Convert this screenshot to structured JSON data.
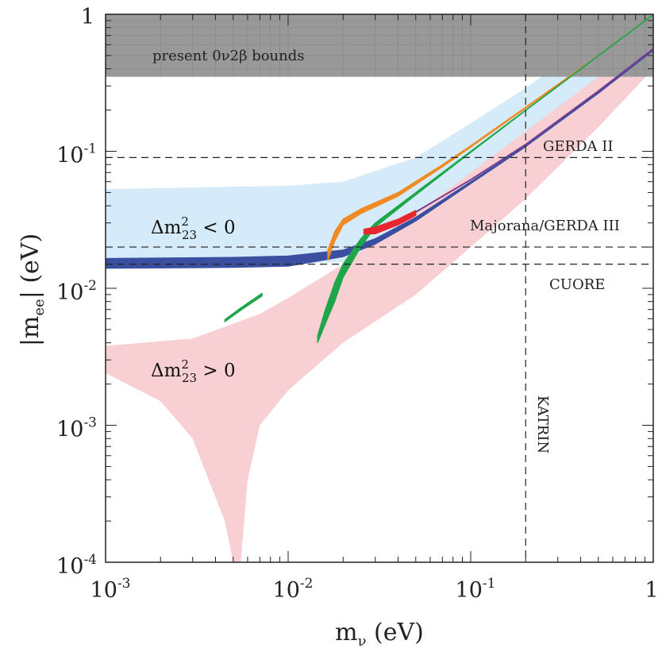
{
  "chart_data": {
    "type": "line",
    "title": "",
    "xlabel": "m_ν (eV)",
    "ylabel": "|m_ee| (eV)",
    "xscale": "log",
    "yscale": "log",
    "xlim": [
      0.001,
      1
    ],
    "ylim": [
      0.0001,
      1
    ],
    "x_ticks": [
      {
        "value": 0.001,
        "base": "10",
        "exp": "-3"
      },
      {
        "value": 0.01,
        "base": "10",
        "exp": "-2"
      },
      {
        "value": 0.1,
        "base": "10",
        "exp": "-1"
      },
      {
        "value": 1,
        "base": "1",
        "exp": ""
      }
    ],
    "y_ticks": [
      {
        "value": 0.0001,
        "base": "10",
        "exp": "-4"
      },
      {
        "value": 0.001,
        "base": "10",
        "exp": "-3"
      },
      {
        "value": 0.01,
        "base": "10",
        "exp": "-2"
      },
      {
        "value": 0.1,
        "base": "10",
        "exp": "-1"
      },
      {
        "value": 1,
        "base": "1",
        "exp": ""
      }
    ],
    "excluded_region": {
      "label": "present 0ν2β bounds",
      "y_min": 0.35,
      "y_max": 1,
      "color": "#999999"
    },
    "bands": [
      {
        "name": "inverted hierarchy band",
        "color": "#d6ebf9",
        "upper": [
          [
            0.001,
            0.053
          ],
          [
            0.01,
            0.056
          ],
          [
            0.02,
            0.06
          ],
          [
            0.05,
            0.09
          ],
          [
            0.1,
            0.16
          ],
          [
            0.2,
            0.29
          ],
          [
            0.4,
            0.55
          ],
          [
            1,
            1
          ]
        ],
        "lower": [
          [
            0.001,
            0.015
          ],
          [
            0.01,
            0.0152
          ],
          [
            0.02,
            0.0155
          ],
          [
            0.05,
            0.025
          ],
          [
            0.1,
            0.045
          ],
          [
            0.2,
            0.083
          ],
          [
            0.5,
            0.2
          ],
          [
            1,
            0.4
          ]
        ]
      },
      {
        "name": "normal hierarchy band",
        "color": "#f8d0d3",
        "upper": [
          [
            0.001,
            0.0038
          ],
          [
            0.003,
            0.0043
          ],
          [
            0.007,
            0.0065
          ],
          [
            0.01,
            0.0085
          ],
          [
            0.02,
            0.015
          ],
          [
            0.05,
            0.035
          ],
          [
            0.1,
            0.07
          ],
          [
            0.2,
            0.14
          ],
          [
            0.5,
            0.35
          ],
          [
            1,
            0.7
          ]
        ],
        "lower": [
          [
            0.001,
            0.0024
          ],
          [
            0.002,
            0.0015
          ],
          [
            0.003,
            0.0008
          ],
          [
            0.0045,
            0.0002
          ],
          [
            0.005,
            0.0001
          ],
          [
            0.0055,
            0.0001
          ],
          [
            0.006,
            0.0004
          ],
          [
            0.007,
            0.001
          ],
          [
            0.01,
            0.0018
          ],
          [
            0.02,
            0.004
          ],
          [
            0.05,
            0.009
          ],
          [
            0.1,
            0.02
          ],
          [
            0.2,
            0.045
          ],
          [
            0.5,
            0.15
          ],
          [
            1,
            0.4
          ]
        ]
      }
    ],
    "reference_lines": [
      {
        "orientation": "horizontal",
        "value": 0.09,
        "label": "GERDA II"
      },
      {
        "orientation": "horizontal",
        "value": 0.02,
        "label": "Majorana/GERDA III"
      },
      {
        "orientation": "horizontal",
        "value": 0.015,
        "label": "CUORE"
      },
      {
        "orientation": "vertical",
        "value": 0.2,
        "label": "KATRIN"
      }
    ],
    "series": [
      {
        "name": "blue band",
        "color": "#3b4fa0",
        "kind": "band",
        "upper": [
          [
            0.001,
            0.0165
          ],
          [
            0.005,
            0.0168
          ],
          [
            0.01,
            0.0172
          ],
          [
            0.02,
            0.019
          ],
          [
            0.03,
            0.023
          ],
          [
            0.05,
            0.033
          ],
          [
            0.1,
            0.06
          ],
          [
            0.2,
            0.11
          ],
          [
            0.5,
            0.27
          ],
          [
            1,
            0.55
          ]
        ],
        "lower": [
          [
            0.001,
            0.014
          ],
          [
            0.005,
            0.0142
          ],
          [
            0.01,
            0.0145
          ],
          [
            0.02,
            0.017
          ],
          [
            0.03,
            0.021
          ],
          [
            0.05,
            0.031
          ],
          [
            0.1,
            0.058
          ],
          [
            0.2,
            0.108
          ],
          [
            0.5,
            0.265
          ],
          [
            1,
            0.545
          ]
        ]
      },
      {
        "name": "orange band",
        "color": "#f08a25",
        "kind": "band",
        "upper": [
          [
            0.0165,
            0.019
          ],
          [
            0.018,
            0.026
          ],
          [
            0.02,
            0.032
          ],
          [
            0.025,
            0.038
          ],
          [
            0.04,
            0.05
          ],
          [
            0.07,
            0.08
          ],
          [
            0.1,
            0.11
          ],
          [
            0.2,
            0.21
          ],
          [
            0.5,
            0.5
          ],
          [
            1,
            1
          ]
        ],
        "lower": [
          [
            0.0165,
            0.016
          ],
          [
            0.018,
            0.022
          ],
          [
            0.02,
            0.029
          ],
          [
            0.025,
            0.035
          ],
          [
            0.04,
            0.047
          ],
          [
            0.07,
            0.077
          ],
          [
            0.1,
            0.107
          ],
          [
            0.2,
            0.206
          ],
          [
            0.5,
            0.495
          ],
          [
            1,
            0.99
          ]
        ]
      },
      {
        "name": "green band",
        "color": "#1fa64a",
        "kind": "band",
        "upper": [
          [
            0.0145,
            0.0045
          ],
          [
            0.016,
            0.007
          ],
          [
            0.018,
            0.011
          ],
          [
            0.02,
            0.015
          ],
          [
            0.025,
            0.023
          ],
          [
            0.03,
            0.03
          ],
          [
            0.05,
            0.05
          ],
          [
            0.1,
            0.1
          ],
          [
            0.2,
            0.2
          ],
          [
            0.5,
            0.5
          ],
          [
            1,
            1
          ]
        ],
        "lower": [
          [
            0.0145,
            0.004
          ],
          [
            0.016,
            0.0055
          ],
          [
            0.018,
            0.008
          ],
          [
            0.02,
            0.012
          ],
          [
            0.025,
            0.02
          ],
          [
            0.03,
            0.028
          ],
          [
            0.05,
            0.048
          ],
          [
            0.1,
            0.098
          ],
          [
            0.2,
            0.198
          ],
          [
            0.5,
            0.495
          ],
          [
            1,
            0.99
          ]
        ]
      },
      {
        "name": "small green segment",
        "color": "#1fa64a",
        "kind": "band",
        "upper": [
          [
            0.0045,
            0.0059
          ],
          [
            0.0055,
            0.0072
          ],
          [
            0.0072,
            0.0092
          ]
        ],
        "lower": [
          [
            0.0045,
            0.0057
          ],
          [
            0.0055,
            0.0069
          ],
          [
            0.0072,
            0.0088
          ]
        ]
      },
      {
        "name": "red band",
        "color": "#e8262d",
        "kind": "band",
        "upper": [
          [
            0.026,
            0.027
          ],
          [
            0.03,
            0.028
          ],
          [
            0.04,
            0.032
          ],
          [
            0.05,
            0.037
          ]
        ],
        "lower": [
          [
            0.026,
            0.025
          ],
          [
            0.03,
            0.025
          ],
          [
            0.04,
            0.029
          ],
          [
            0.05,
            0.034
          ]
        ]
      },
      {
        "name": "purple line",
        "color": "#7a3b8f",
        "kind": "line",
        "points": [
          [
            0.05,
            0.036
          ],
          [
            0.1,
            0.062
          ],
          [
            0.2,
            0.112
          ],
          [
            0.5,
            0.275
          ],
          [
            1,
            0.56
          ]
        ]
      }
    ],
    "annotations": [
      {
        "text": "present 0ν2β bounds"
      },
      {
        "text": "Δm²₂₃ < 0",
        "base": "Δm",
        "sup": "2",
        "sub": "23",
        "rest": " < 0"
      },
      {
        "text": "Δm²₂₃ > 0",
        "base": "Δm",
        "sup": "2",
        "sub": "23",
        "rest": " > 0"
      }
    ]
  }
}
